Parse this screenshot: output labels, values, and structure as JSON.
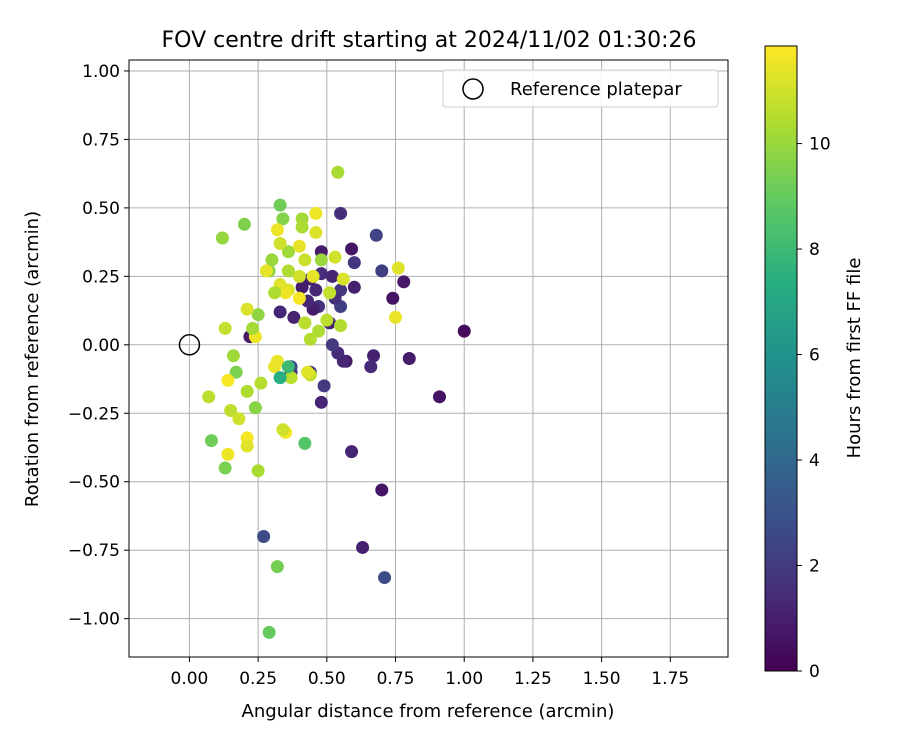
{
  "chart_data": {
    "type": "scatter",
    "title": "FOV centre drift starting at 2024/11/02 01:30:26",
    "xlabel": "Angular distance from reference (arcmin)",
    "ylabel": "Rotation from reference (arcmin)",
    "xlim": [
      -0.22,
      1.96
    ],
    "ylim": [
      -1.14,
      1.04
    ],
    "x_ticks": [
      0.0,
      0.25,
      0.5,
      0.75,
      1.0,
      1.25,
      1.5,
      1.75
    ],
    "x_tick_labels": [
      "0.00",
      "0.25",
      "0.50",
      "0.75",
      "1.00",
      "1.25",
      "1.50",
      "1.75"
    ],
    "y_ticks": [
      -1.0,
      -0.75,
      -0.5,
      -0.25,
      0.0,
      0.25,
      0.5,
      0.75,
      1.0
    ],
    "y_tick_labels": [
      "−1.00",
      "−0.75",
      "−0.50",
      "−0.25",
      "0.00",
      "0.25",
      "0.50",
      "0.75",
      "1.00"
    ],
    "grid": true,
    "legend": {
      "position": "top-right",
      "entries": [
        "Reference platepar"
      ]
    },
    "reference_point": {
      "x": 0.0,
      "y": 0.0,
      "label": "Reference platepar"
    },
    "colorbar": {
      "label": "Hours from first FF file",
      "colormap": "viridis",
      "range": [
        0,
        11.85
      ],
      "ticks": [
        0,
        2,
        4,
        6,
        8,
        10
      ],
      "tick_labels": [
        "0",
        "2",
        "4",
        "6",
        "8",
        "10"
      ]
    },
    "series": [
      {
        "x": [
          1.0,
          0.91,
          0.8,
          0.78,
          0.74,
          0.71,
          0.7,
          0.7,
          0.68,
          0.67,
          0.66,
          0.63,
          0.6,
          0.6,
          0.59,
          0.59,
          0.57,
          0.56,
          0.55,
          0.55,
          0.55,
          0.54,
          0.53,
          0.52,
          0.52,
          0.51,
          0.49,
          0.48,
          0.48,
          0.48,
          0.47,
          0.46,
          0.45,
          0.44,
          0.44,
          0.43,
          0.41,
          0.38,
          0.37,
          0.37,
          0.33,
          0.27,
          0.22
        ],
        "y": [
          0.05,
          -0.19,
          -0.05,
          0.23,
          0.17,
          -0.85,
          0.27,
          -0.53,
          0.4,
          -0.04,
          -0.08,
          -0.74,
          0.3,
          0.21,
          0.35,
          -0.39,
          -0.06,
          -0.06,
          0.48,
          0.14,
          0.2,
          -0.03,
          0.17,
          0.0,
          0.25,
          0.08,
          -0.15,
          -0.21,
          0.34,
          0.26,
          0.14,
          0.2,
          0.13,
          0.24,
          -0.1,
          0.16,
          0.21,
          0.1,
          -0.08,
          -0.1,
          0.12,
          -0.7,
          0.03
        ],
        "c": [
          0.3,
          0.6,
          0.9,
          0.8,
          0.6,
          2.7,
          2.2,
          0.7,
          2.4,
          1.1,
          1.4,
          1.0,
          1.8,
          1.0,
          0.7,
          1.2,
          0.8,
          1.3,
          1.6,
          2.3,
          1.9,
          1.4,
          1.6,
          2.0,
          1.2,
          1.1,
          2.0,
          1.2,
          0.9,
          1.5,
          1.7,
          1.3,
          0.9,
          1.0,
          1.6,
          1.3,
          0.9,
          1.1,
          2.6,
          2.1,
          1.2,
          2.7,
          0.8
        ]
      },
      {
        "x": [
          0.76,
          0.75,
          0.56,
          0.55,
          0.54,
          0.53,
          0.51,
          0.5,
          0.48,
          0.47,
          0.46,
          0.46,
          0.45,
          0.44,
          0.44,
          0.43,
          0.42,
          0.42,
          0.41,
          0.41,
          0.4,
          0.4,
          0.4,
          0.37,
          0.36,
          0.36,
          0.36,
          0.35,
          0.35,
          0.34,
          0.34,
          0.33,
          0.33,
          0.33,
          0.32,
          0.32,
          0.31,
          0.31,
          0.3,
          0.29,
          0.28,
          0.26,
          0.25,
          0.25,
          0.24,
          0.24,
          0.23,
          0.21,
          0.21,
          0.21,
          0.21,
          0.2,
          0.18,
          0.17,
          0.16,
          0.15,
          0.14,
          0.14,
          0.13,
          0.13,
          0.12,
          0.08,
          0.07
        ],
        "y": [
          0.28,
          0.1,
          0.24,
          0.07,
          0.63,
          0.32,
          0.19,
          0.09,
          0.31,
          0.05,
          0.48,
          0.41,
          0.25,
          0.02,
          -0.11,
          -0.1,
          0.08,
          0.31,
          0.46,
          0.43,
          0.36,
          0.25,
          0.17,
          -0.12,
          0.34,
          0.27,
          0.2,
          -0.32,
          0.19,
          -0.31,
          0.46,
          0.51,
          0.37,
          0.22,
          -0.06,
          0.42,
          -0.08,
          0.19,
          0.31,
          0.27,
          0.27,
          -0.14,
          -0.46,
          0.11,
          -0.23,
          0.03,
          0.06,
          -0.34,
          -0.37,
          -0.17,
          0.13,
          0.44,
          -0.27,
          -0.1,
          -0.04,
          -0.24,
          -0.13,
          -0.4,
          0.06,
          -0.45,
          0.39,
          -0.35,
          -0.19
        ],
        "c": [
          11.3,
          11.5,
          11.2,
          10.5,
          10.3,
          11.0,
          10.8,
          10.6,
          10.0,
          10.4,
          11.6,
          11.2,
          11.4,
          10.5,
          10.8,
          11.3,
          10.6,
          10.9,
          10.2,
          10.3,
          11.5,
          11.0,
          11.7,
          10.6,
          10.1,
          10.4,
          11.2,
          11.7,
          11.6,
          11.0,
          9.6,
          9.2,
          11.0,
          11.3,
          11.5,
          11.6,
          11.5,
          10.4,
          10.0,
          9.8,
          11.4,
          10.5,
          10.3,
          9.8,
          9.7,
          11.6,
          10.2,
          11.7,
          11.3,
          10.4,
          11.2,
          9.5,
          11.0,
          9.4,
          10.1,
          10.7,
          11.7,
          11.6,
          10.8,
          9.4,
          9.9,
          9.2,
          10.6
        ]
      },
      {
        "x": [
          0.42,
          0.32,
          0.29,
          0.33,
          0.36
        ],
        "y": [
          -0.36,
          -0.81,
          -1.05,
          -0.12,
          -0.08
        ],
        "c": [
          8.6,
          9.3,
          9.0,
          7.4,
          8.0
        ]
      }
    ]
  }
}
